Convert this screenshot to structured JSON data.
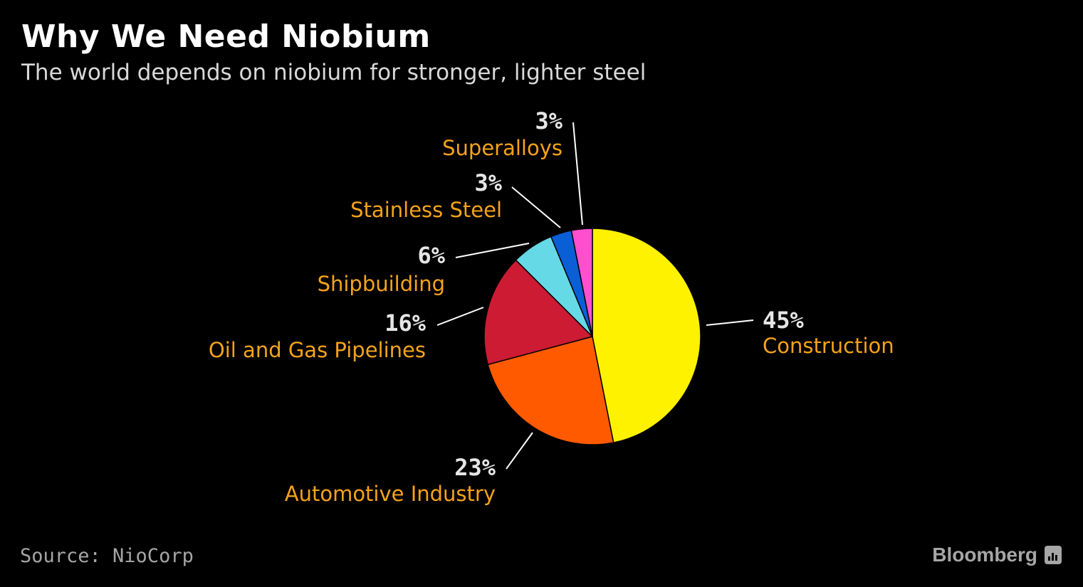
{
  "title": "Why We Need Niobium",
  "subtitle": "The world depends on niobium for stronger, lighter steel",
  "source": "Source: NioCorp",
  "brand": "Bloomberg",
  "brand_icon": "bloomberg-terminal-icon",
  "colors": {
    "background": "#000000",
    "label_category": "#f5a31a",
    "label_percent": "#e6e6e6"
  },
  "chart_data": {
    "type": "pie",
    "start_angle_deg": 0,
    "direction": "clockwise",
    "slices": [
      {
        "label": "Construction",
        "value": 45,
        "percent_label": "45%",
        "color": "#fff200"
      },
      {
        "label": "Automotive Industry",
        "value": 23,
        "percent_label": "23%",
        "color": "#ff5a00"
      },
      {
        "label": "Oil and Gas Pipelines",
        "value": 16,
        "percent_label": "16%",
        "color": "#cc1b33"
      },
      {
        "label": "Shipbuilding",
        "value": 6,
        "percent_label": "6%",
        "color": "#66d9e6"
      },
      {
        "label": "Stainless Steel",
        "value": 3,
        "percent_label": "3%",
        "color": "#0b5fd6"
      },
      {
        "label": "Superalloys",
        "value": 3,
        "percent_label": "3%",
        "color": "#ff4fcf"
      }
    ]
  }
}
